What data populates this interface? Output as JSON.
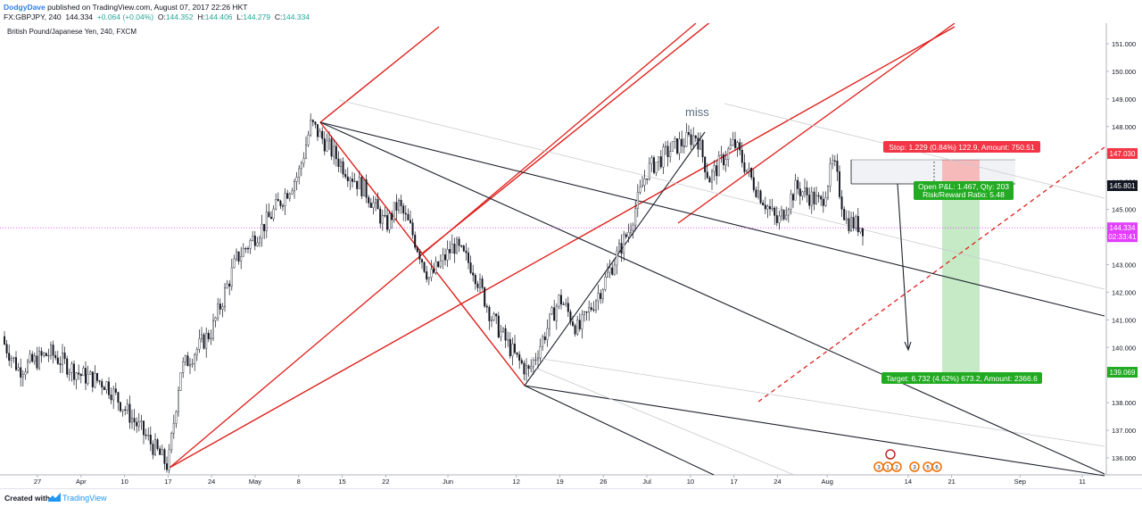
{
  "header": {
    "author": "DodgyDave",
    "published": " published on TradingView.com, August 07, 2017 22:26 HKT",
    "symbol": "FX:GBPJPY, 240",
    "last": "144.334",
    "change": "+0.064 (+0.04%)",
    "o_label": "O:",
    "o": "144.352",
    "h_label": "H:",
    "h": "144.406",
    "l_label": "L:",
    "l": "144.279",
    "c_label": "C:",
    "c": "144.334"
  },
  "chart_title": "British Pound/Japanese Yen, 240, FXCM",
  "footer": {
    "created_with": "Created with",
    "brand": "TradingView"
  },
  "colors": {
    "pitchfork_red": "#e0201b",
    "pitchfork_black": "#1e222d",
    "price_line": "#e040fb",
    "stop_fill": "#f7b0b0",
    "target_fill": "#bfe8bf",
    "stop_label_bg": "#f23645",
    "target_label_bg": "#22ab22",
    "candles": "#131722"
  },
  "chart_data": {
    "type": "candlestick",
    "title": "British Pound/Japanese Yen, 240, FXCM",
    "ylim": [
      135.5,
      151.6
    ],
    "y_ticks": [
      "151.000",
      "150.000",
      "149.000",
      "148.000",
      "147.000",
      "146.000",
      "145.000",
      "144.000",
      "143.000",
      "142.000",
      "141.000",
      "140.000",
      "139.000",
      "138.000",
      "137.000",
      "136.000"
    ],
    "x_ticks": [
      "27",
      "Apr",
      "10",
      "17",
      "24",
      "May",
      "8",
      "15",
      "22",
      "Jun",
      "12",
      "19",
      "26",
      "Jul",
      "10",
      "17",
      "24",
      "Aug",
      "14",
      "21",
      "Sep",
      "11"
    ],
    "price_anchors": [
      {
        "x": "Mar 21",
        "y": 140.4
      },
      {
        "x": "Mar 24",
        "y": 139.2
      },
      {
        "x": "Mar 29",
        "y": 139.8
      },
      {
        "x": "Apr 3",
        "y": 139.0
      },
      {
        "x": "Apr 7",
        "y": 138.7
      },
      {
        "x": "Apr 12",
        "y": 137.2
      },
      {
        "x": "Apr 17",
        "y": 135.7
      },
      {
        "x": "Apr 19",
        "y": 139.2
      },
      {
        "x": "Apr 24",
        "y": 140.6
      },
      {
        "x": "Apr 28",
        "y": 143.2
      },
      {
        "x": "May 3",
        "y": 144.6
      },
      {
        "x": "May 8",
        "y": 146.3
      },
      {
        "x": "May 10",
        "y": 148.1
      },
      {
        "x": "May 15",
        "y": 146.6
      },
      {
        "x": "May 19",
        "y": 145.6
      },
      {
        "x": "May 22",
        "y": 144.4
      },
      {
        "x": "May 24",
        "y": 145.2
      },
      {
        "x": "May 26",
        "y": 144.3
      },
      {
        "x": "May 29",
        "y": 142.5
      },
      {
        "x": "Jun 2",
        "y": 143.7
      },
      {
        "x": "Jun 5",
        "y": 142.9
      },
      {
        "x": "Jun 8",
        "y": 141.1
      },
      {
        "x": "Jun 12",
        "y": 139.6
      },
      {
        "x": "Jun 14",
        "y": 139.1
      },
      {
        "x": "Jun 19",
        "y": 141.8
      },
      {
        "x": "Jun 22",
        "y": 140.6
      },
      {
        "x": "Jun 26",
        "y": 142.3
      },
      {
        "x": "Jun 30",
        "y": 144.2
      },
      {
        "x": "Jul 3",
        "y": 146.4
      },
      {
        "x": "Jul 7",
        "y": 147.2
      },
      {
        "x": "Jul 11",
        "y": 147.7
      },
      {
        "x": "Jul 13",
        "y": 146.1
      },
      {
        "x": "Jul 17",
        "y": 147.4
      },
      {
        "x": "Jul 20",
        "y": 146.0
      },
      {
        "x": "Jul 24",
        "y": 144.5
      },
      {
        "x": "Jul 27",
        "y": 145.8
      },
      {
        "x": "Jul 31",
        "y": 145.2
      },
      {
        "x": "Aug 2",
        "y": 146.7
      },
      {
        "x": "Aug 4",
        "y": 144.6
      },
      {
        "x": "Aug 7",
        "y": 144.334
      }
    ],
    "current_price": "144.334",
    "countdown": "02:33:41",
    "position": {
      "type": "short",
      "entry": "145.801",
      "stop_price": "147.030",
      "target_price": "139.069",
      "stop_label": "Stop: 1.229 (0.84%) 122.9, Amount: 750.51",
      "pl_label": "Open P&L: 1.467, Qty: 203",
      "rr_label": "Risk/Reward Ratio: 5.48",
      "target_label": "Target: 6.732 (4.62%) 673.2, Amount: 2366.6"
    },
    "annotation": "miss",
    "event_markers": [
      "3",
      "1",
      "2",
      "3",
      "5",
      "6"
    ]
  }
}
